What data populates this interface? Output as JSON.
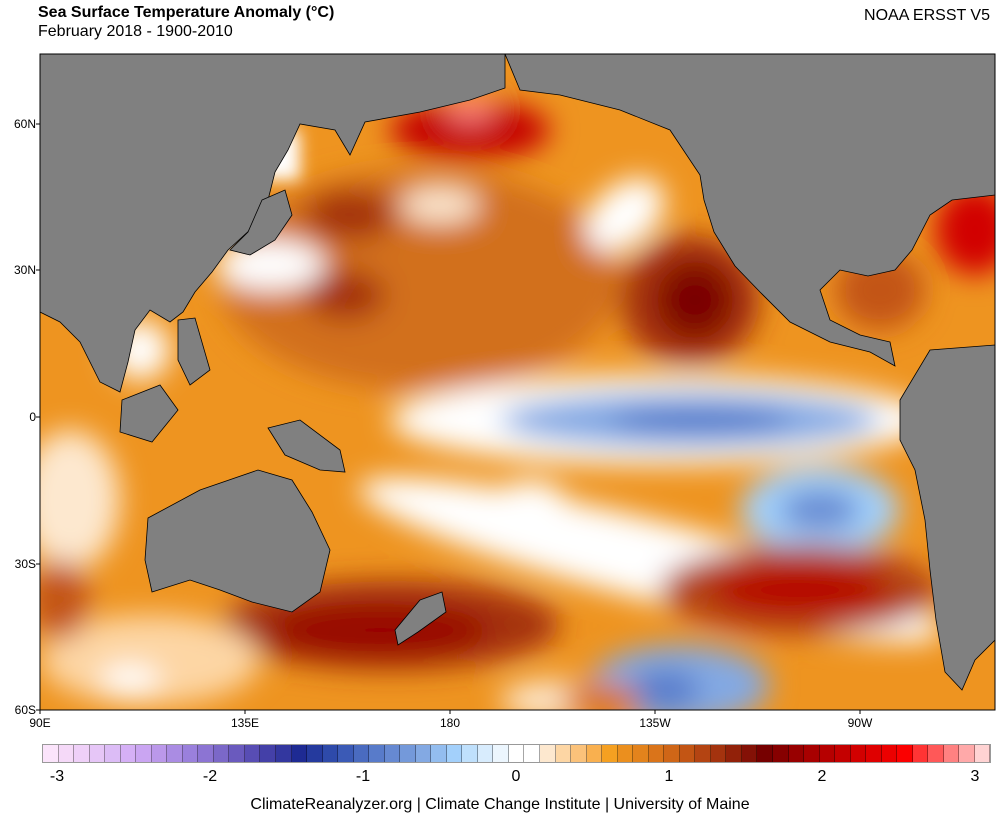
{
  "header": {
    "title": "Sea Surface Temperature Anomaly (°C)",
    "subtitle": "February 2018 - 1900-2010",
    "dataset": "NOAA ERSST V5"
  },
  "map": {
    "lat_labels": [
      "60N",
      "30N",
      "0",
      "30S",
      "60S"
    ],
    "lon_labels": [
      "90E",
      "135E",
      "180",
      "135W",
      "90W"
    ],
    "land_color": "#808080",
    "ocean_base_color": "#ee9420"
  },
  "colorbar": {
    "min": -3.1,
    "max": 3.1,
    "step": 0.1,
    "tick_labels": [
      "-3",
      "-2",
      "-1",
      "0",
      "1",
      "2",
      "3"
    ],
    "colors": [
      "#fbe4fb",
      "#f5d9f8",
      "#efd0f8",
      "#e6c6f7",
      "#dcbcf6",
      "#d5b0f6",
      "#caa5f2",
      "#bb98ea",
      "#aa8ce3",
      "#9a80dc",
      "#8c74d3",
      "#7b68c8",
      "#6a5abe",
      "#584db4",
      "#4440a8",
      "#33379f",
      "#1e2a93",
      "#253a9e",
      "#2e4aaa",
      "#3b5ab6",
      "#4a6bc0",
      "#587bca",
      "#6689d2",
      "#7499da",
      "#83a9e3",
      "#93bdef",
      "#a3d0fb",
      "#bfe0fc",
      "#d8ecfd",
      "#ecf6fe",
      "#ffffff",
      "#ffffff",
      "#fde8cf",
      "#fdd6a4",
      "#fbc27a",
      "#f9b04f",
      "#f5a021",
      "#eb8f1e",
      "#e3831c",
      "#da741a",
      "#cf6617",
      "#c35514",
      "#b44412",
      "#a4330e",
      "#922109",
      "#841106",
      "#760000",
      "#860000",
      "#980000",
      "#a80000",
      "#b60000",
      "#c40000",
      "#d20000",
      "#df0000",
      "#ec0000",
      "#fb0000",
      "#ff3434",
      "#ff5858",
      "#ff8181",
      "#ffa9a9",
      "#ffd3d3"
    ]
  },
  "footer": "ClimateReanalyzer.org | Climate Change Institute | University of Maine"
}
